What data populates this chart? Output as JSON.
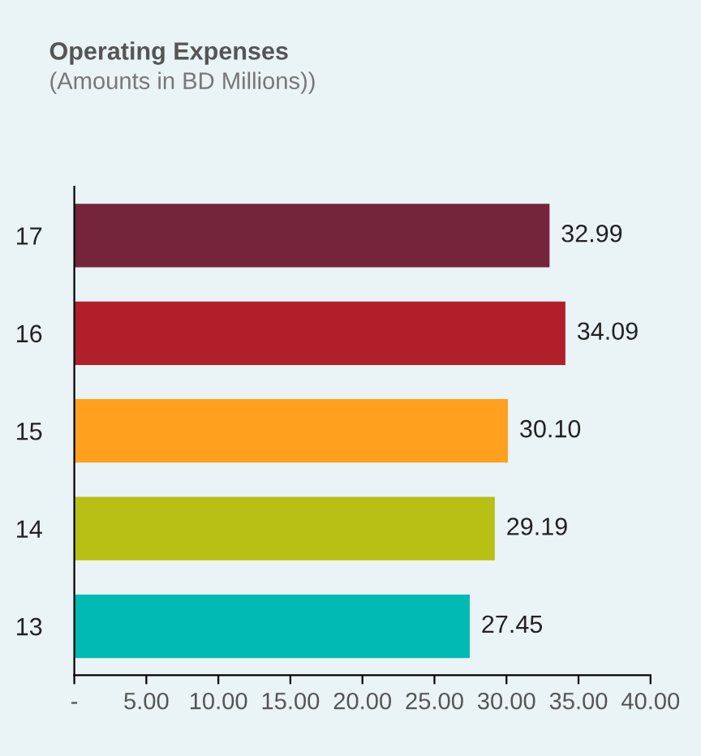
{
  "chart_data": {
    "type": "bar",
    "orientation": "horizontal",
    "title": "Operating Expenses",
    "subtitle": "(Amounts in BD Millions))",
    "categories": [
      "17",
      "16",
      "15",
      "14",
      "13"
    ],
    "values": [
      32.99,
      34.09,
      30.1,
      29.19,
      27.45
    ],
    "colors": [
      "#74243b",
      "#b01f2a",
      "#ffa01e",
      "#b8bf15",
      "#00bbb3"
    ],
    "value_labels": [
      "32.99",
      "34.09",
      "30.10",
      "29.19",
      "27.45"
    ],
    "xlim": [
      0,
      40
    ],
    "xticks": [
      {
        "value": 0,
        "label": "-"
      },
      {
        "value": 5,
        "label": "5.00"
      },
      {
        "value": 10,
        "label": "10.00"
      },
      {
        "value": 15,
        "label": "15.00"
      },
      {
        "value": 20,
        "label": "20.00"
      },
      {
        "value": 25,
        "label": "25.00"
      },
      {
        "value": 30,
        "label": "30.00"
      },
      {
        "value": 35,
        "label": "35.00"
      },
      {
        "value": 40,
        "label": "40.00"
      }
    ],
    "grid": false,
    "legend": false
  }
}
